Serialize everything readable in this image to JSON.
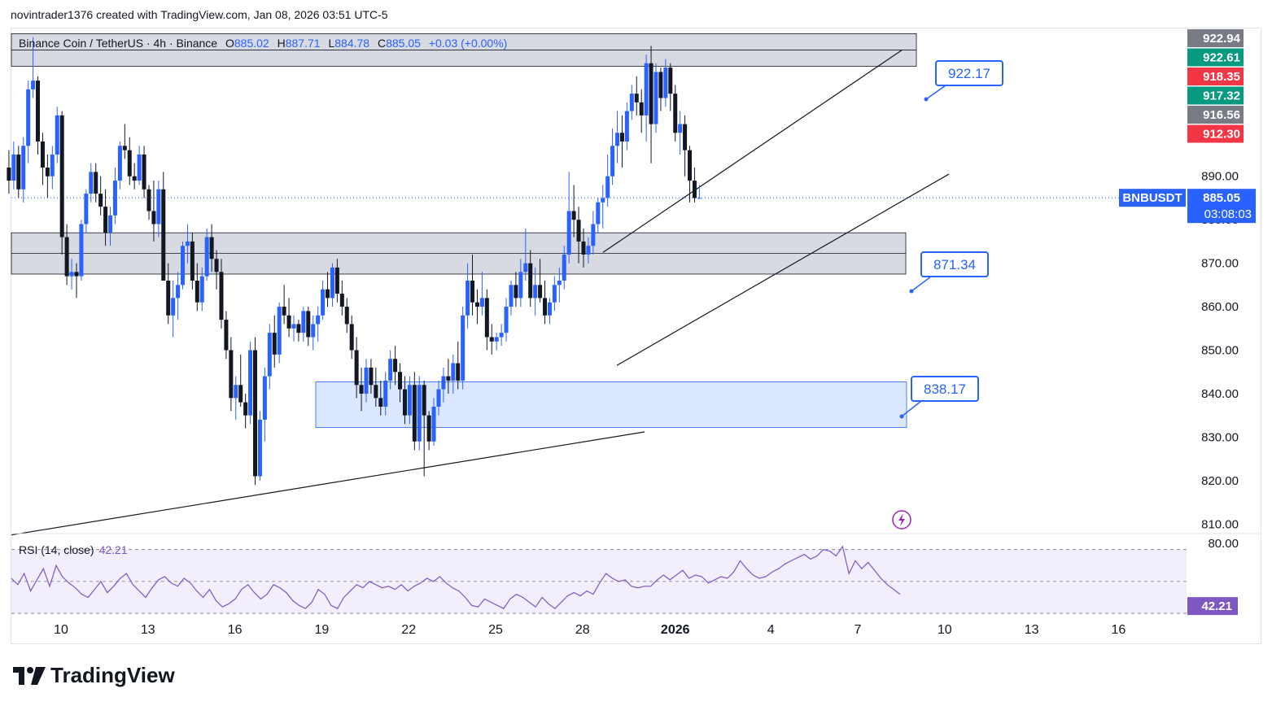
{
  "header": {
    "published_by": "novintrader1376 created with TradingView.com, Jan 08, 2026 03:51 UTC-5"
  },
  "legend": {
    "symbol_desc": "Binance Coin / TetherUS · 4h · Binance",
    "o_label": "O",
    "o": "885.02",
    "h_label": "H",
    "h": "887.71",
    "l_label": "L",
    "l": "884.78",
    "c_label": "C",
    "c": "885.05",
    "change": "+0.03 (+0.00%)"
  },
  "rsi_legend": {
    "label": "RSI (14, close)",
    "value": "42.21"
  },
  "brand": {
    "name": "TradingView"
  },
  "colors": {
    "up": "#2962ff",
    "down": "#131722",
    "zone": "#d1d4dc",
    "demand_zone": "#d4e3ff",
    "rsi_line": "#7e57c2",
    "rsi_band": "#f2eefb",
    "red_tag": "#f23645",
    "green_tag": "#089981",
    "grey_tag": "#787b86"
  },
  "chart_data": [
    {
      "type": "candlestick",
      "symbol": "BNBUSDT",
      "timeframe": "4h",
      "x_ticks": [
        "10",
        "13",
        "16",
        "19",
        "22",
        "25",
        "28",
        "2026",
        "4",
        "7",
        "10",
        "13",
        "16"
      ],
      "y_ticks": [
        "922.94",
        "922.61",
        "918.35",
        "917.32",
        "916.56",
        "912.30",
        "900.00",
        "890.00",
        "880.00",
        "870.00",
        "860.00",
        "850.00",
        "840.00",
        "830.00",
        "820.00",
        "810.00"
      ],
      "ylim": [
        808,
        924
      ],
      "price_tags": [
        {
          "value": "922.94",
          "color": "grey"
        },
        {
          "value": "922.61",
          "color": "green"
        },
        {
          "value": "918.35",
          "color": "red"
        },
        {
          "value": "917.32",
          "color": "green"
        },
        {
          "value": "916.56",
          "color": "grey"
        },
        {
          "value": "912.30",
          "color": "red"
        }
      ],
      "last_price": {
        "symbol": "BNBUSDT",
        "price": "885.05",
        "countdown": "03:08:03"
      },
      "annotations": [
        {
          "text": "922.17",
          "price": 922.17
        },
        {
          "text": "871.34",
          "price": 871.34
        },
        {
          "text": "838.17",
          "price": 838.17
        }
      ],
      "zones": [
        {
          "kind": "resistance",
          "low": 915.3,
          "high": 922.8
        },
        {
          "kind": "support",
          "low": 867.5,
          "high": 877.0
        },
        {
          "kind": "demand",
          "low": 832.2,
          "high": 842.7
        }
      ],
      "trendlines": [
        {
          "from": [
            "Dec 09",
            807.5
          ],
          "to": [
            "Dec 30",
            831.2
          ]
        },
        {
          "from": [
            "Dec 29",
            872.5
          ],
          "to": [
            "Jan 07",
            919.0
          ]
        },
        {
          "from": [
            "Dec 29",
            846.5
          ],
          "to": [
            "Jan 08",
            890.5
          ]
        }
      ],
      "candles": [
        [
          892,
          896,
          886,
          889
        ],
        [
          889,
          898,
          887,
          895
        ],
        [
          895,
          897,
          885,
          887
        ],
        [
          887,
          899,
          884,
          897
        ],
        [
          897,
          912,
          893,
          910
        ],
        [
          910,
          922,
          908,
          912
        ],
        [
          912,
          913,
          895,
          898
        ],
        [
          898,
          900,
          888,
          892
        ],
        [
          892,
          895,
          885,
          890
        ],
        [
          890,
          897,
          887,
          895
        ],
        [
          895,
          906,
          893,
          904
        ],
        [
          904,
          905,
          872,
          876
        ],
        [
          876,
          879,
          865,
          867
        ],
        [
          867,
          871,
          864,
          868
        ],
        [
          868,
          870,
          862,
          867
        ],
        [
          867,
          880,
          866,
          879
        ],
        [
          879,
          887,
          877,
          886
        ],
        [
          886,
          893,
          884,
          891
        ],
        [
          891,
          893,
          884,
          886
        ],
        [
          886,
          890,
          881,
          883
        ],
        [
          883,
          887,
          874,
          877
        ],
        [
          877,
          883,
          874,
          881
        ],
        [
          881,
          892,
          879,
          889
        ],
        [
          889,
          898,
          887,
          897
        ],
        [
          897,
          902,
          894,
          896
        ],
        [
          896,
          899,
          888,
          890
        ],
        [
          890,
          893,
          887,
          889
        ],
        [
          889,
          897,
          888,
          895
        ],
        [
          895,
          897,
          885,
          887
        ],
        [
          887,
          888,
          880,
          882
        ],
        [
          882,
          889,
          875,
          879
        ],
        [
          879,
          889,
          876,
          887
        ],
        [
          887,
          891,
          866,
          866
        ],
        [
          866,
          870,
          856,
          858
        ],
        [
          858,
          866,
          853,
          862
        ],
        [
          862,
          868,
          857,
          865
        ],
        [
          865,
          875,
          864,
          874
        ],
        [
          874,
          879,
          870,
          875
        ],
        [
          875,
          877,
          864,
          866
        ],
        [
          866,
          870,
          859,
          861
        ],
        [
          861,
          869,
          859,
          867
        ],
        [
          867,
          878,
          866,
          876
        ],
        [
          876,
          879,
          868,
          871
        ],
        [
          871,
          873,
          864,
          868
        ],
        [
          868,
          871,
          855,
          857
        ],
        [
          857,
          859,
          848,
          850
        ],
        [
          850,
          853,
          836,
          839
        ],
        [
          839,
          844,
          834,
          842
        ],
        [
          842,
          849,
          837,
          838
        ],
        [
          838,
          840,
          832,
          835
        ],
        [
          835,
          852,
          833,
          850
        ],
        [
          850,
          853,
          819,
          821
        ],
        [
          821,
          836,
          820,
          834
        ],
        [
          834,
          846,
          829,
          844
        ],
        [
          844,
          856,
          841,
          854
        ],
        [
          854,
          858,
          846,
          849
        ],
        [
          849,
          861,
          847,
          860
        ],
        [
          860,
          865,
          856,
          858
        ],
        [
          858,
          862,
          853,
          855
        ],
        [
          855,
          858,
          852,
          856
        ],
        [
          856,
          857,
          852,
          854
        ],
        [
          854,
          860,
          852,
          859
        ],
        [
          859,
          860,
          851,
          853
        ],
        [
          853,
          858,
          850,
          856
        ],
        [
          856,
          860,
          852,
          858
        ],
        [
          858,
          866,
          857,
          864
        ],
        [
          864,
          868,
          860,
          862
        ],
        [
          862,
          870,
          860,
          869
        ],
        [
          869,
          871,
          861,
          863
        ],
        [
          863,
          866,
          858,
          860
        ],
        [
          860,
          862,
          854,
          856
        ],
        [
          856,
          858,
          848,
          850
        ],
        [
          850,
          853,
          839,
          842
        ],
        [
          842,
          846,
          836,
          840
        ],
        [
          840,
          848,
          838,
          846
        ],
        [
          846,
          848,
          840,
          842
        ],
        [
          842,
          846,
          837,
          839
        ],
        [
          839,
          843,
          835,
          837
        ],
        [
          837,
          845,
          835,
          843
        ],
        [
          843,
          850,
          841,
          848
        ],
        [
          848,
          851,
          842,
          845
        ],
        [
          845,
          847,
          838,
          841
        ],
        [
          841,
          844,
          833,
          835
        ],
        [
          835,
          844,
          833,
          842
        ],
        [
          842,
          845,
          827,
          829
        ],
        [
          829,
          844,
          827,
          842
        ],
        [
          842,
          843,
          821,
          835
        ],
        [
          835,
          836,
          827,
          829
        ],
        [
          829,
          839,
          828,
          837
        ],
        [
          837,
          843,
          835,
          841
        ],
        [
          841,
          846,
          838,
          844
        ],
        [
          844,
          848,
          840,
          843
        ],
        [
          843,
          849,
          840,
          847
        ],
        [
          847,
          852,
          841,
          843
        ],
        [
          843,
          860,
          841,
          858
        ],
        [
          858,
          870,
          855,
          866
        ],
        [
          866,
          872,
          858,
          861
        ],
        [
          861,
          864,
          856,
          860
        ],
        [
          860,
          868,
          858,
          862
        ],
        [
          862,
          864,
          850,
          853
        ],
        [
          853,
          856,
          849,
          852
        ],
        [
          852,
          854,
          850,
          853
        ],
        [
          853,
          856,
          851,
          854
        ],
        [
          854,
          862,
          852,
          860
        ],
        [
          860,
          866,
          858,
          865
        ],
        [
          865,
          868,
          860,
          862
        ],
        [
          862,
          871,
          860,
          868
        ],
        [
          868,
          878,
          866,
          870
        ],
        [
          870,
          873,
          860,
          862
        ],
        [
          862,
          869,
          858,
          865
        ],
        [
          865,
          871,
          861,
          862
        ],
        [
          862,
          866,
          856,
          858
        ],
        [
          858,
          862,
          856,
          861
        ],
        [
          861,
          867,
          859,
          865
        ],
        [
          865,
          869,
          861,
          866
        ],
        [
          866,
          874,
          864,
          872
        ],
        [
          872,
          891,
          870,
          882
        ],
        [
          882,
          888,
          876,
          880
        ],
        [
          880,
          883,
          870,
          875
        ],
        [
          875,
          878,
          869,
          872
        ],
        [
          872,
          876,
          870,
          874
        ],
        [
          874,
          882,
          872,
          879
        ],
        [
          879,
          885,
          877,
          884
        ],
        [
          884,
          888,
          878,
          885
        ],
        [
          885,
          895,
          883,
          890
        ],
        [
          890,
          901,
          888,
          897
        ],
        [
          897,
          905,
          893,
          900
        ],
        [
          900,
          904,
          892,
          898
        ],
        [
          898,
          907,
          896,
          905
        ],
        [
          905,
          911,
          903,
          909
        ],
        [
          909,
          913,
          904,
          907
        ],
        [
          907,
          910,
          900,
          904
        ],
        [
          904,
          918,
          898,
          916
        ],
        [
          916,
          920,
          893,
          902
        ],
        [
          902,
          916,
          900,
          914
        ],
        [
          914,
          915,
          905,
          908
        ],
        [
          908,
          917,
          906,
          915
        ],
        [
          915,
          916,
          905,
          909
        ],
        [
          909,
          911,
          898,
          900
        ],
        [
          900,
          905,
          895,
          902
        ],
        [
          902,
          904,
          890,
          896
        ],
        [
          896,
          897,
          884,
          889
        ],
        [
          889,
          892,
          884,
          885
        ],
        [
          885,
          888,
          885,
          885
        ]
      ]
    },
    {
      "type": "line",
      "name": "RSI (14, close)",
      "bands": [
        30,
        50,
        70
      ],
      "ylim": [
        28,
        78
      ],
      "y_ticks": [
        "80.00"
      ],
      "last": "42.21",
      "values": [
        52,
        48,
        55,
        44,
        51,
        58,
        47,
        60,
        53,
        49,
        46,
        42,
        40,
        45,
        50,
        43,
        47,
        52,
        55,
        48,
        44,
        40,
        46,
        51,
        53,
        49,
        47,
        52,
        49,
        44,
        40,
        45,
        38,
        34,
        36,
        39,
        45,
        48,
        43,
        39,
        42,
        48,
        46,
        43,
        38,
        35,
        33,
        37,
        45,
        42,
        35,
        33,
        40,
        44,
        48,
        46,
        50,
        48,
        46,
        47,
        45,
        48,
        44,
        47,
        49,
        52,
        50,
        53,
        49,
        46,
        44,
        40,
        35,
        34,
        39,
        37,
        35,
        33,
        39,
        42,
        40,
        37,
        34,
        40,
        36,
        33,
        37,
        41,
        43,
        41,
        44,
        42,
        49,
        55,
        52,
        50,
        51,
        47,
        46,
        47,
        47,
        51,
        54,
        51,
        54,
        57,
        52,
        54,
        53,
        49,
        51,
        53,
        52,
        56,
        63,
        58,
        54,
        52,
        53,
        56,
        58,
        61,
        63,
        65,
        67,
        64,
        66,
        70,
        69,
        66,
        72,
        55,
        63,
        58,
        62,
        57,
        52,
        48,
        45,
        42
      ]
    }
  ]
}
